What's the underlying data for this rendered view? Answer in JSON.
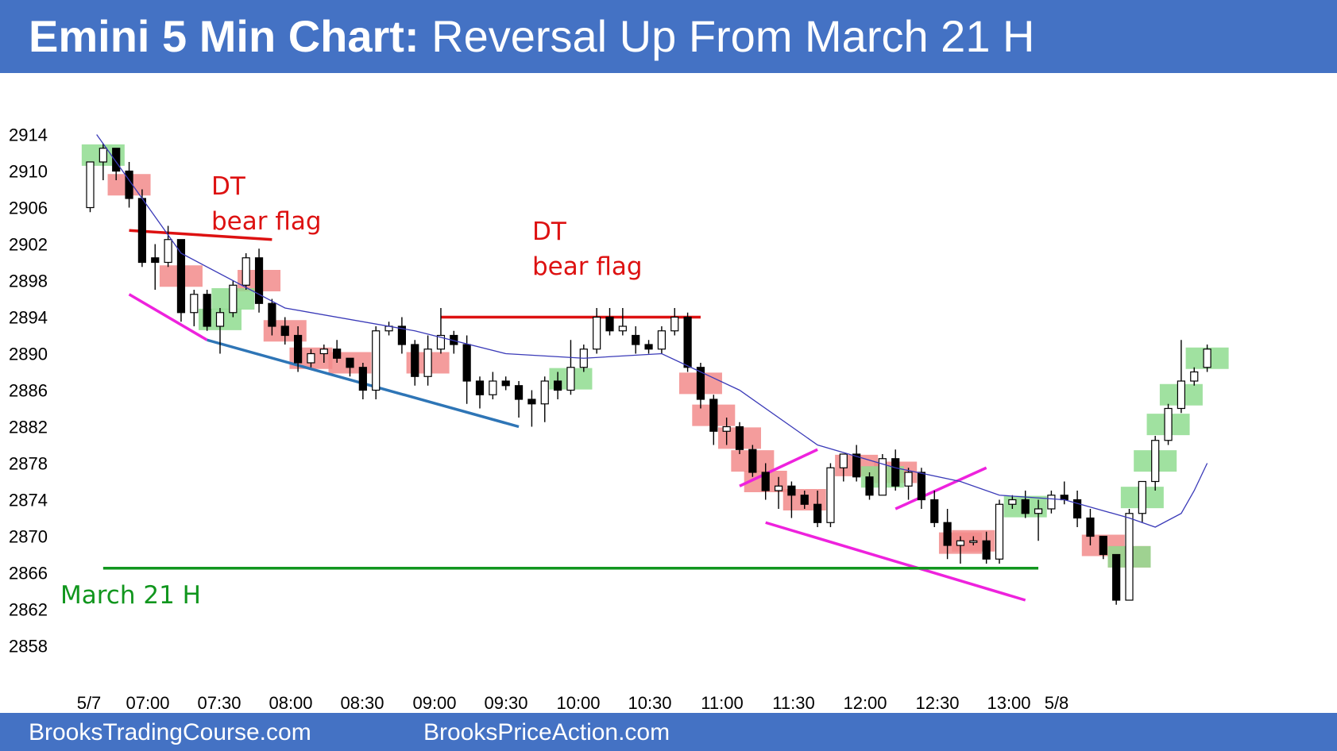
{
  "header": {
    "title_bold": "Emini 5 Min Chart:",
    "title_rest": " Reversal Up From March 21 H"
  },
  "footer": {
    "left": "BrooksTradingCourse.com",
    "center": "BrooksPriceAction.com"
  },
  "colors": {
    "header_bg": "#4472c4",
    "bear_box": "#f28b8b",
    "bull_box": "#8fdc8f",
    "ema": "#3a3ab8",
    "red_line": "#dd1111",
    "magenta_line": "#ee22dd",
    "blue_line": "#2e75b6",
    "green_line": "#11961e"
  },
  "chart_data": {
    "type": "candlestick",
    "title": "Emini 5 Min Chart: Reversal Up From March 21 H",
    "y_ticks": [
      "2914",
      "2910",
      "2906",
      "2902",
      "2898",
      "2894",
      "2890",
      "2886",
      "2882",
      "2878",
      "2874",
      "2870",
      "2866",
      "2862",
      "2858"
    ],
    "x_ticks": [
      "5/7",
      "07:00",
      "07:30",
      "08:00",
      "08:30",
      "09:00",
      "09:30",
      "10:00",
      "10:30",
      "11:00",
      "11:30",
      "12:00",
      "12:30",
      "13:00",
      "5/8"
    ],
    "ylim": [
      2856,
      2918
    ],
    "candles": [
      {
        "o": 2906,
        "h": 2911,
        "l": 2905.5,
        "c": 2911
      },
      {
        "o": 2911,
        "h": 2913,
        "l": 2909,
        "c": 2912.5
      },
      {
        "o": 2912.5,
        "h": 2912.5,
        "l": 2909,
        "c": 2910
      },
      {
        "o": 2910,
        "h": 2911,
        "l": 2906,
        "c": 2907
      },
      {
        "o": 2907,
        "h": 2908,
        "l": 2899.5,
        "c": 2900
      },
      {
        "o": 2900.5,
        "h": 2902,
        "l": 2897,
        "c": 2900
      },
      {
        "o": 2900,
        "h": 2904,
        "l": 2899.5,
        "c": 2902.5
      },
      {
        "o": 2902.5,
        "h": 2902.5,
        "l": 2893.5,
        "c": 2894.5
      },
      {
        "o": 2894.5,
        "h": 2897,
        "l": 2893,
        "c": 2896.5
      },
      {
        "o": 2896.5,
        "h": 2897,
        "l": 2892.5,
        "c": 2893
      },
      {
        "o": 2893,
        "h": 2895,
        "l": 2890,
        "c": 2894.5
      },
      {
        "o": 2894.5,
        "h": 2898,
        "l": 2894,
        "c": 2897.5
      },
      {
        "o": 2897.5,
        "h": 2901,
        "l": 2897,
        "c": 2900.5
      },
      {
        "o": 2900.5,
        "h": 2901.5,
        "l": 2894.5,
        "c": 2895.5
      },
      {
        "o": 2895.5,
        "h": 2896,
        "l": 2892,
        "c": 2893
      },
      {
        "o": 2893,
        "h": 2894,
        "l": 2891,
        "c": 2892
      },
      {
        "o": 2892,
        "h": 2893,
        "l": 2888,
        "c": 2889
      },
      {
        "o": 2889,
        "h": 2890.5,
        "l": 2888.5,
        "c": 2890
      },
      {
        "o": 2890,
        "h": 2891,
        "l": 2889,
        "c": 2890.5
      },
      {
        "o": 2890.5,
        "h": 2891.5,
        "l": 2889,
        "c": 2889.5
      },
      {
        "o": 2889.5,
        "h": 2889.5,
        "l": 2887.5,
        "c": 2888.5
      },
      {
        "o": 2888.5,
        "h": 2889,
        "l": 2885,
        "c": 2886
      },
      {
        "o": 2886,
        "h": 2893,
        "l": 2885,
        "c": 2892.5
      },
      {
        "o": 2892.5,
        "h": 2893.5,
        "l": 2892,
        "c": 2893
      },
      {
        "o": 2893,
        "h": 2894,
        "l": 2890,
        "c": 2891
      },
      {
        "o": 2891,
        "h": 2891.5,
        "l": 2886.5,
        "c": 2887.5
      },
      {
        "o": 2887.5,
        "h": 2892,
        "l": 2886.5,
        "c": 2890.5
      },
      {
        "o": 2890.5,
        "h": 2895,
        "l": 2890,
        "c": 2892
      },
      {
        "o": 2892,
        "h": 2892.5,
        "l": 2890,
        "c": 2891
      },
      {
        "o": 2891,
        "h": 2892,
        "l": 2884.5,
        "c": 2887
      },
      {
        "o": 2887,
        "h": 2887.5,
        "l": 2884,
        "c": 2885.5
      },
      {
        "o": 2885.5,
        "h": 2888,
        "l": 2885,
        "c": 2887
      },
      {
        "o": 2887,
        "h": 2887.5,
        "l": 2886,
        "c": 2886.5
      },
      {
        "o": 2886.5,
        "h": 2887,
        "l": 2883,
        "c": 2885
      },
      {
        "o": 2885,
        "h": 2886,
        "l": 2882,
        "c": 2884.5
      },
      {
        "o": 2884.5,
        "h": 2887.5,
        "l": 2882.5,
        "c": 2887
      },
      {
        "o": 2887,
        "h": 2888,
        "l": 2885,
        "c": 2886
      },
      {
        "o": 2886,
        "h": 2891.5,
        "l": 2885.5,
        "c": 2888.5
      },
      {
        "o": 2888.5,
        "h": 2891,
        "l": 2888,
        "c": 2890.5
      },
      {
        "o": 2890.5,
        "h": 2895,
        "l": 2890,
        "c": 2894
      },
      {
        "o": 2894,
        "h": 2895,
        "l": 2892,
        "c": 2892.5
      },
      {
        "o": 2892.5,
        "h": 2895,
        "l": 2892,
        "c": 2893
      },
      {
        "o": 2892,
        "h": 2893,
        "l": 2890,
        "c": 2891
      },
      {
        "o": 2891,
        "h": 2891.5,
        "l": 2890,
        "c": 2890.5
      },
      {
        "o": 2890.5,
        "h": 2893,
        "l": 2890,
        "c": 2892.5
      },
      {
        "o": 2892.5,
        "h": 2895,
        "l": 2892,
        "c": 2894
      },
      {
        "o": 2894,
        "h": 2894.5,
        "l": 2888,
        "c": 2888.5
      },
      {
        "o": 2888.5,
        "h": 2889,
        "l": 2884,
        "c": 2885
      },
      {
        "o": 2885,
        "h": 2885.5,
        "l": 2880,
        "c": 2881.5
      },
      {
        "o": 2881.5,
        "h": 2883,
        "l": 2880,
        "c": 2882
      },
      {
        "o": 2882,
        "h": 2882.5,
        "l": 2879,
        "c": 2879.5
      },
      {
        "o": 2879.5,
        "h": 2880,
        "l": 2876.5,
        "c": 2877
      },
      {
        "o": 2877,
        "h": 2878,
        "l": 2874,
        "c": 2875
      },
      {
        "o": 2875,
        "h": 2876.5,
        "l": 2873,
        "c": 2875.5
      },
      {
        "o": 2875.5,
        "h": 2876,
        "l": 2872,
        "c": 2874.5
      },
      {
        "o": 2874.5,
        "h": 2875,
        "l": 2873,
        "c": 2873.5
      },
      {
        "o": 2873.5,
        "h": 2875,
        "l": 2871,
        "c": 2871.5
      },
      {
        "o": 2871.5,
        "h": 2878,
        "l": 2871,
        "c": 2877.5
      },
      {
        "o": 2877.5,
        "h": 2879,
        "l": 2876,
        "c": 2879
      },
      {
        "o": 2879,
        "h": 2880,
        "l": 2876,
        "c": 2876.5
      },
      {
        "o": 2876.5,
        "h": 2877,
        "l": 2874,
        "c": 2874.5
      },
      {
        "o": 2874.5,
        "h": 2879,
        "l": 2874.5,
        "c": 2878.5
      },
      {
        "o": 2878.5,
        "h": 2879.5,
        "l": 2875,
        "c": 2875.5
      },
      {
        "o": 2875.5,
        "h": 2877.5,
        "l": 2874,
        "c": 2877
      },
      {
        "o": 2877,
        "h": 2877.5,
        "l": 2873,
        "c": 2874
      },
      {
        "o": 2874,
        "h": 2875,
        "l": 2871,
        "c": 2871.5
      },
      {
        "o": 2871.5,
        "h": 2873,
        "l": 2867.5,
        "c": 2869
      },
      {
        "o": 2869,
        "h": 2870,
        "l": 2867,
        "c": 2869.5
      },
      {
        "o": 2869.5,
        "h": 2870,
        "l": 2869,
        "c": 2869.5
      },
      {
        "o": 2869.5,
        "h": 2870.5,
        "l": 2867,
        "c": 2867.5
      },
      {
        "o": 2867.5,
        "h": 2874,
        "l": 2867,
        "c": 2873.5
      },
      {
        "o": 2873.5,
        "h": 2874.5,
        "l": 2873,
        "c": 2874
      },
      {
        "o": 2874,
        "h": 2875,
        "l": 2872,
        "c": 2872.5
      },
      {
        "o": 2872.5,
        "h": 2874,
        "l": 2869.5,
        "c": 2873
      },
      {
        "o": 2873,
        "h": 2875,
        "l": 2872.5,
        "c": 2874.5
      },
      {
        "o": 2874.5,
        "h": 2876,
        "l": 2873.5,
        "c": 2874
      },
      {
        "o": 2874,
        "h": 2875,
        "l": 2871,
        "c": 2872
      },
      {
        "o": 2872,
        "h": 2873,
        "l": 2869,
        "c": 2870
      },
      {
        "o": 2870,
        "h": 2870,
        "l": 2867.5,
        "c": 2868
      },
      {
        "o": 2868,
        "h": 2868,
        "l": 2862.5,
        "c": 2863
      },
      {
        "o": 2863,
        "h": 2873,
        "l": 2863,
        "c": 2872.5
      },
      {
        "o": 2872.5,
        "h": 2876,
        "l": 2871.5,
        "c": 2876
      },
      {
        "o": 2876,
        "h": 2881,
        "l": 2875,
        "c": 2880.5
      },
      {
        "o": 2880.5,
        "h": 2884.5,
        "l": 2880,
        "c": 2884
      },
      {
        "o": 2884,
        "h": 2891.5,
        "l": 2883.5,
        "c": 2887
      },
      {
        "o": 2887,
        "h": 2888.5,
        "l": 2886.5,
        "c": 2888
      },
      {
        "o": 2888.5,
        "h": 2891,
        "l": 2888,
        "c": 2890.5
      }
    ],
    "ema": [
      [
        0.5,
        2914
      ],
      [
        7,
        2901
      ],
      [
        15,
        2895
      ],
      [
        25,
        2892.5
      ],
      [
        32,
        2890
      ],
      [
        38,
        2889.5
      ],
      [
        44,
        2890
      ],
      [
        50,
        2886
      ],
      [
        56,
        2880
      ],
      [
        62,
        2877.5
      ],
      [
        67,
        2876
      ],
      [
        70,
        2874.5
      ],
      [
        75,
        2874
      ],
      [
        80,
        2872
      ],
      [
        82,
        2871
      ],
      [
        84,
        2872.5
      ],
      [
        85,
        2875
      ],
      [
        86,
        2878
      ]
    ],
    "annotations": [
      {
        "text": "DT",
        "color": "#dd1111"
      },
      {
        "text": "bear flag",
        "color": "#dd1111"
      },
      {
        "text": "DT",
        "color": "#dd1111"
      },
      {
        "text": "bear flag",
        "color": "#dd1111"
      },
      {
        "text": "March 21 H",
        "color": "#11961e"
      }
    ],
    "bear_boxes": [
      3,
      7,
      13,
      15,
      17,
      20,
      26,
      47,
      48,
      50,
      51,
      52,
      55,
      59,
      62,
      67,
      68,
      78,
      80
    ],
    "bull_boxes": [
      1,
      10,
      11,
      37,
      61,
      72,
      80,
      81,
      82,
      83,
      84,
      86
    ],
    "lines": {
      "red_dt1": [
        [
          3,
          2903.5
        ],
        [
          14,
          2902.5
        ]
      ],
      "red_dt2": [
        [
          27,
          2894
        ],
        [
          47,
          2894
        ]
      ],
      "magenta_a": [
        [
          3,
          2896.5
        ],
        [
          9,
          2891.5
        ]
      ],
      "blue_a": [
        [
          9,
          2891.5
        ],
        [
          33,
          2882
        ]
      ],
      "magenta_b": [
        [
          50,
          2875.5
        ],
        [
          56,
          2879.5
        ]
      ],
      "magenta_c": [
        [
          52,
          2871.5
        ],
        [
          72,
          2863
        ]
      ],
      "magenta_d": [
        [
          62,
          2873
        ],
        [
          69,
          2877.5
        ]
      ],
      "green_h": [
        [
          1,
          2866.5
        ],
        [
          73,
          2866.5
        ]
      ]
    }
  }
}
